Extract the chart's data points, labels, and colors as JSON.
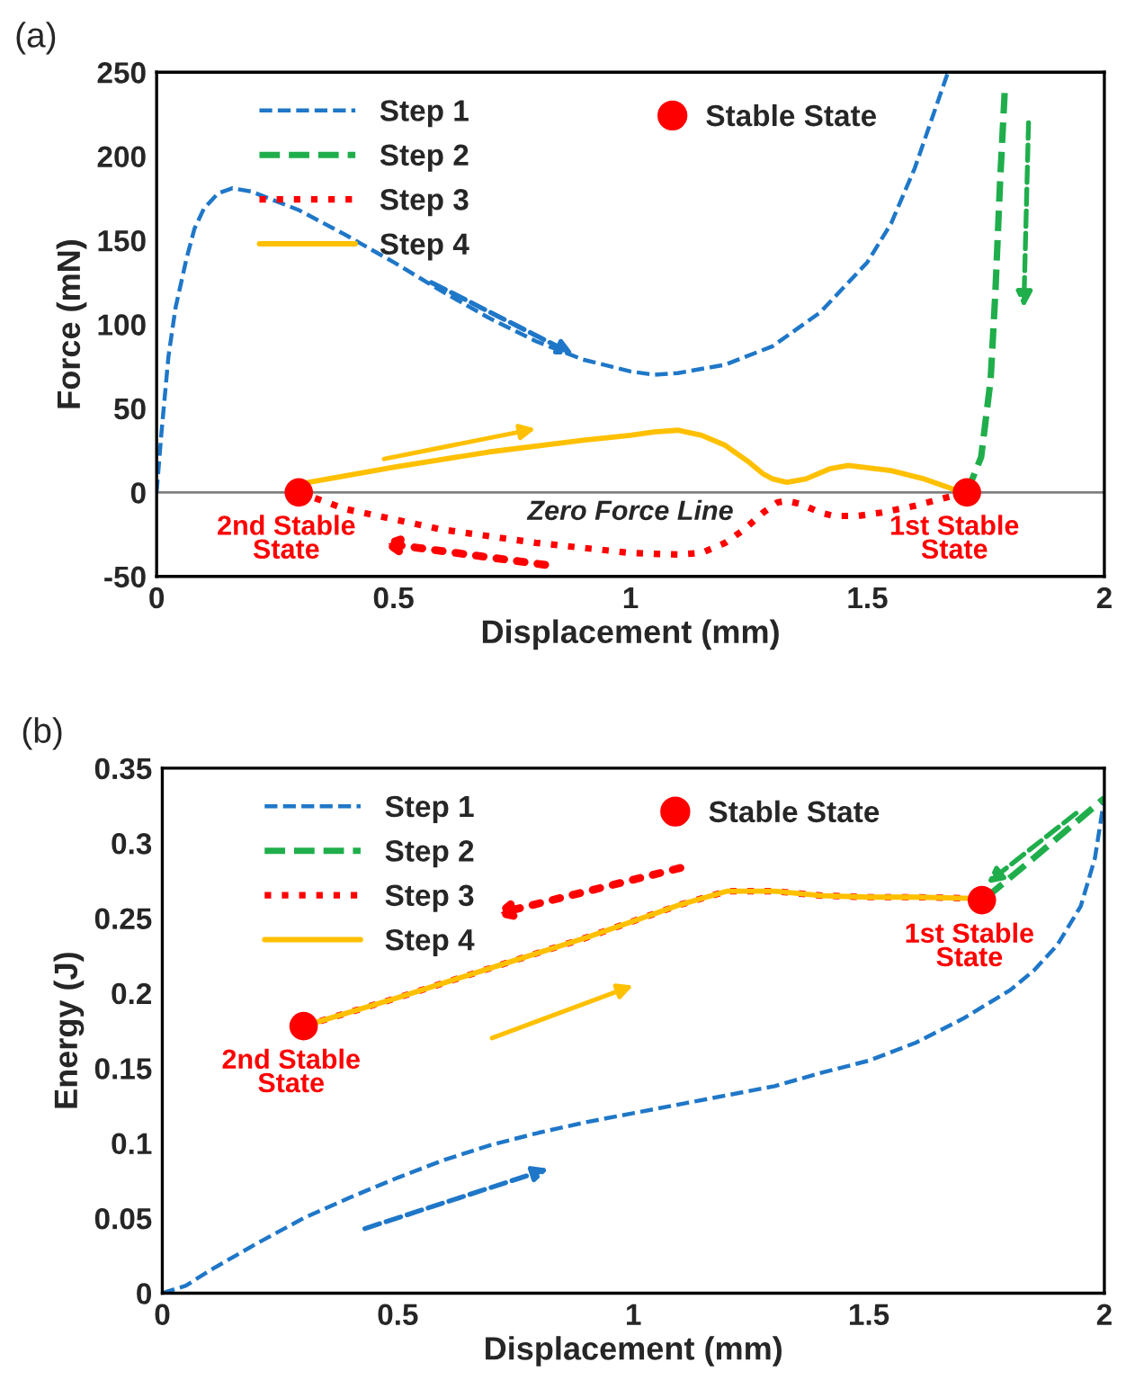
{
  "chart_data": [
    {
      "type": "line",
      "title": "(a)",
      "xlabel": "Displacement (mm)",
      "ylabel": "Force (mN)",
      "xlim": [
        0,
        2
      ],
      "ylim": [
        -50,
        250
      ],
      "xticks": [
        0,
        0.5,
        1,
        1.5,
        2
      ],
      "yticks": [
        -50,
        0,
        50,
        100,
        150,
        200,
        250
      ],
      "legend": "top left",
      "series": [
        {
          "name": "Step 1",
          "color": "#1f77c8",
          "line_style": "dashed",
          "x": [
            0,
            0.01,
            0.025,
            0.04,
            0.063,
            0.08,
            0.1,
            0.13,
            0.16,
            0.2,
            0.3,
            0.4,
            0.5,
            0.6,
            0.7,
            0.8,
            0.9,
            1.0,
            1.05,
            1.1,
            1.2,
            1.3,
            1.4,
            1.5,
            1.55,
            1.6,
            1.67
          ],
          "values": [
            0,
            35,
            81,
            110,
            139,
            157,
            169,
            178,
            181,
            179,
            168,
            153,
            137,
            120,
            104,
            90,
            79,
            72,
            70,
            71,
            76,
            87,
            107,
            137,
            160,
            193,
            250
          ]
        },
        {
          "name": "Step 2",
          "color": "#1fae4b",
          "line_style": "dashed",
          "x": [
            1.71,
            1.74,
            1.76,
            1.77,
            1.78,
            1.79
          ],
          "values": [
            0,
            21,
            67,
            119,
            185,
            240
          ]
        },
        {
          "name": "Step 3",
          "color": "#ff0000",
          "line_style": "dotted",
          "x": [
            0.3,
            0.4,
            0.6,
            0.8,
            1.0,
            1.1,
            1.15,
            1.2,
            1.24,
            1.28,
            1.31,
            1.33,
            1.36,
            1.4,
            1.43,
            1.48,
            1.53,
            1.6,
            1.64,
            1.71
          ],
          "values": [
            0,
            -10,
            -22,
            -30,
            -36,
            -37,
            -36,
            -30,
            -22,
            -12,
            -6,
            -5,
            -7,
            -12,
            -14,
            -14,
            -12,
            -8,
            -5,
            0
          ]
        },
        {
          "name": "Step 4",
          "color": "#ffc000",
          "line_style": "solid",
          "x": [
            0.3,
            0.5,
            0.7,
            0.9,
            1.0,
            1.05,
            1.1,
            1.15,
            1.2,
            1.25,
            1.28,
            1.3,
            1.33,
            1.37,
            1.42,
            1.46,
            1.55,
            1.62,
            1.68,
            1.71
          ],
          "values": [
            5,
            15,
            24,
            31,
            34,
            36,
            37,
            34,
            28,
            18,
            11,
            8,
            6,
            8,
            14,
            16,
            13,
            8,
            2,
            0
          ]
        },
        {
          "name": "Stable State",
          "type": "scatter",
          "marker": "circle",
          "color": "#ff0000",
          "x": [
            0.3,
            1.71
          ],
          "values": [
            0,
            0
          ]
        }
      ],
      "ref_lines": [
        {
          "axis": "y",
          "value": 0,
          "label": "Zero Force Line",
          "color": "#808080"
        }
      ],
      "annotations": [
        {
          "text": "2nd Stable\nState",
          "x": 0.3,
          "y": 0
        },
        {
          "text": "1st Stable\nState",
          "x": 1.71,
          "y": 0
        }
      ]
    },
    {
      "type": "line",
      "title": "(b)",
      "xlabel": "Displacement (mm)",
      "ylabel": "Energy (J)",
      "xlim": [
        0,
        2
      ],
      "ylim": [
        0,
        0.35
      ],
      "xticks": [
        0,
        0.5,
        1,
        1.5,
        2
      ],
      "yticks": [
        0,
        0.05,
        0.1,
        0.15,
        0.2,
        0.25,
        0.3,
        0.35
      ],
      "legend": "top left",
      "series": [
        {
          "name": "Step 1",
          "color": "#1f77c8",
          "line_style": "dashed",
          "x": [
            0,
            0.05,
            0.1,
            0.2,
            0.3,
            0.4,
            0.5,
            0.6,
            0.7,
            0.8,
            0.9,
            1.0,
            1.1,
            1.2,
            1.3,
            1.4,
            1.5,
            1.6,
            1.7,
            1.8,
            1.85,
            1.9,
            1.95,
            1.98,
            2.0
          ],
          "values": [
            0,
            0.005,
            0.015,
            0.033,
            0.05,
            0.064,
            0.077,
            0.089,
            0.099,
            0.107,
            0.114,
            0.12,
            0.126,
            0.132,
            0.138,
            0.147,
            0.155,
            0.167,
            0.183,
            0.202,
            0.215,
            0.232,
            0.258,
            0.29,
            0.33
          ]
        },
        {
          "name": "Step 2",
          "color": "#1fae4b",
          "line_style": "dashed",
          "x": [
            1.75,
            1.85,
            2.0
          ],
          "values": [
            0.264,
            0.29,
            0.33
          ]
        },
        {
          "name": "Step 3",
          "color": "#ff0000",
          "line_style": "dotted",
          "x": [
            0.3,
            0.5,
            0.7,
            0.9,
            1.1,
            1.2,
            1.3,
            1.4,
            1.5,
            1.6,
            1.74
          ],
          "values": [
            0.178,
            0.197,
            0.217,
            0.237,
            0.259,
            0.268,
            0.268,
            0.265,
            0.264,
            0.264,
            0.263
          ]
        },
        {
          "name": "Step 4",
          "color": "#ffc000",
          "line_style": "solid",
          "x": [
            0.3,
            0.5,
            0.7,
            0.9,
            1.1,
            1.2,
            1.3,
            1.4,
            1.5,
            1.6,
            1.74
          ],
          "values": [
            0.178,
            0.197,
            0.217,
            0.237,
            0.259,
            0.268,
            0.268,
            0.265,
            0.264,
            0.264,
            0.263
          ]
        },
        {
          "name": "Stable State",
          "type": "scatter",
          "marker": "circle",
          "color": "#ff0000",
          "x": [
            0.3,
            1.74
          ],
          "values": [
            0.178,
            0.262
          ]
        }
      ],
      "annotations": [
        {
          "text": "2nd Stable\nState",
          "x": 0.3,
          "y": 0.178
        },
        {
          "text": "1st Stable\nState",
          "x": 1.74,
          "y": 0.262
        }
      ]
    }
  ]
}
